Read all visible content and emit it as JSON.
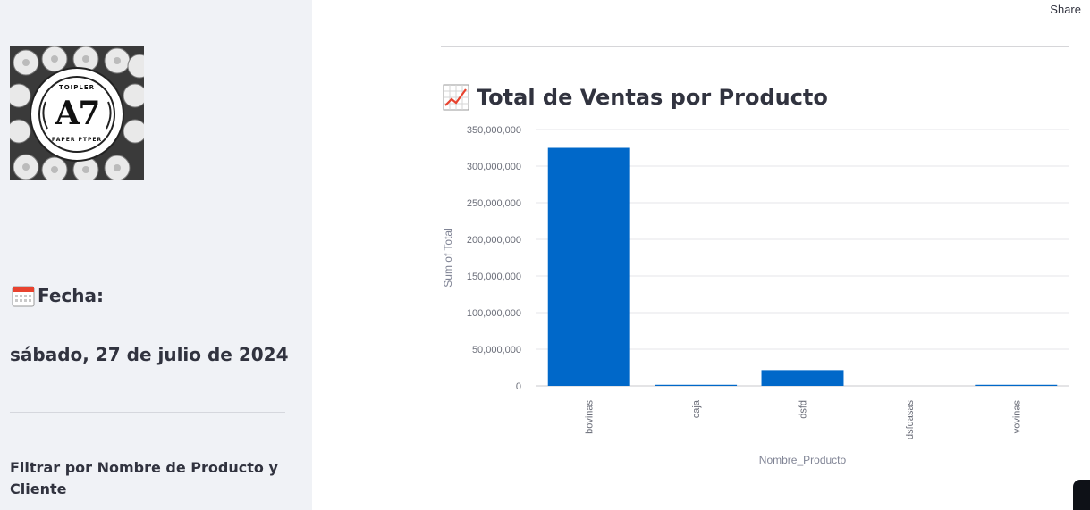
{
  "sidebar": {
    "logo": {
      "brand": "A7",
      "line1": "TOIPLER",
      "line2": "PAPER PTPER"
    },
    "fecha_label": "Fecha:",
    "fecha_value": "sábado, 27 de julio de 2024",
    "filter_label": "Filtrar por Nombre de Producto y Cliente"
  },
  "header": {
    "share_label": "Share"
  },
  "main": {
    "chart_title": "Total de Ventas por Producto"
  },
  "colors": {
    "bar": "#0068c9",
    "sidebar_bg": "#f0f2f6"
  },
  "chart_data": {
    "type": "bar",
    "title": "Total de Ventas por Producto",
    "xlabel": "Nombre_Producto",
    "ylabel": "Sum of Total",
    "categories": [
      "bovinas",
      "caja",
      "dsfd",
      "dsfdasas",
      "vovinas"
    ],
    "values": [
      325000000,
      1500000,
      21500000,
      0,
      1500000
    ],
    "ylim": [
      0,
      350000000
    ],
    "yticks": [
      0,
      50000000,
      100000000,
      150000000,
      200000000,
      250000000,
      300000000,
      350000000
    ],
    "ytick_labels": [
      "0",
      "50,000,000",
      "100,000,000",
      "150,000,000",
      "200,000,000",
      "250,000,000",
      "300,000,000",
      "350,000,000"
    ],
    "grid": true
  }
}
